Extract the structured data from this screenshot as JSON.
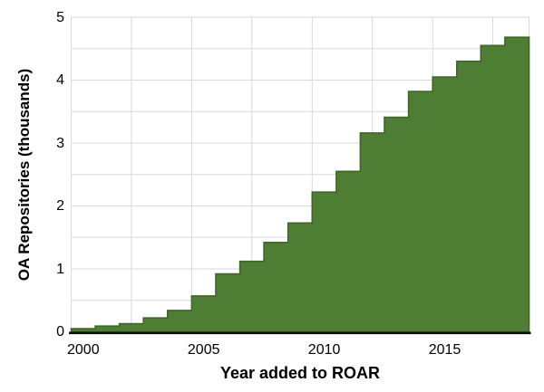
{
  "chart_data": {
    "type": "area",
    "subtype": "step-cumulative",
    "title": "",
    "xlabel": "Year added to ROAR",
    "ylabel": "OA Repositories (thousands)",
    "categories": [
      2000,
      2001,
      2002,
      2003,
      2004,
      2005,
      2006,
      2007,
      2008,
      2009,
      2010,
      2011,
      2012,
      2013,
      2014,
      2015,
      2016,
      2017,
      2018
    ],
    "values": [
      0.05,
      0.09,
      0.13,
      0.22,
      0.34,
      0.57,
      0.92,
      1.12,
      1.42,
      1.73,
      2.22,
      2.55,
      3.16,
      3.41,
      3.82,
      4.05,
      4.3,
      4.55,
      4.68
    ],
    "ylim": [
      0,
      5
    ],
    "yticks": [
      "0",
      "1",
      "2",
      "3",
      "4",
      "5"
    ],
    "xticks": [
      "2000",
      "2005",
      "2010",
      "2015"
    ],
    "grid": {
      "y_step": 0.5,
      "x_step_years": 2.5,
      "color": "#d9d9d9",
      "show": true
    },
    "legend_position": "none",
    "colors": {
      "fill": "#4e7e33",
      "stroke": "#3f6626",
      "axis_line": "#0d0d0d",
      "text": "#000000",
      "background": "#ffffff"
    }
  }
}
